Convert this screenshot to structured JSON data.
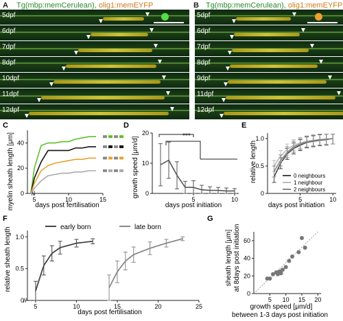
{
  "panels": {
    "A": {
      "letter": "A",
      "title_1": "Tg(mbp:memCerulean),",
      "title_2": "olig1:memEYFP",
      "rows": [
        "5dpf",
        "6dpf",
        "7dpf",
        "8dpf",
        "10dpf",
        "11dpf",
        "12dpf"
      ]
    },
    "B": {
      "letter": "B",
      "title_1": "Tg(mbp:memCerulean),",
      "title_2": "olig1:memEYFP",
      "rows": [
        "5dpf",
        "6dpf",
        "7dpf",
        "8dpf",
        "9dpf",
        "11dpf",
        "12dpf"
      ]
    },
    "C": {
      "letter": "C",
      "ylabel": "myelin sheath length [μm]",
      "xlabel": "days post fertilisation",
      "yticks": [
        "0",
        "20",
        "40"
      ],
      "xticks": [
        "5",
        "10",
        "15"
      ]
    },
    "D": {
      "letter": "D",
      "ylabel": "growth speed [μm/d]",
      "xlabel": "days post initiation",
      "yticks": [
        "0",
        "10",
        "20"
      ],
      "xticks": [
        "5",
        "10"
      ],
      "sig": "***"
    },
    "E": {
      "letter": "E",
      "ylabel": "relative length",
      "xlabel": "days post initiation",
      "yticks": [
        "0",
        "0.5",
        "1.0"
      ],
      "xticks": [
        "5",
        "10"
      ],
      "legend": [
        "0 neighbours",
        "1 neighbour",
        "2 neighbours"
      ]
    },
    "F": {
      "letter": "F",
      "ylabel": "relative sheath length",
      "xlabel": "days post fertilisation",
      "yticks": [
        "0",
        "0.5",
        "1.0"
      ],
      "xticks": [
        "5",
        "10",
        "15",
        "20",
        "25"
      ],
      "legend": [
        "early born",
        "late born"
      ]
    },
    "G": {
      "letter": "G",
      "ylabel_1": "sheath length [μm]",
      "ylabel_2": "at 8days post initiation",
      "xlabel_1": "growth speed [μm/d]",
      "xlabel_2": "between 1-3 days post initiation",
      "yticks": [
        "0",
        "20",
        "40",
        "60"
      ],
      "xticks": [
        "5",
        "10",
        "15",
        "20"
      ]
    }
  },
  "colors": {
    "green": "#5cc02a",
    "orange": "#e8a030",
    "black": "#111111",
    "grey": "#aaaaaa",
    "dark": "#444444",
    "mid": "#888888",
    "light": "#bbbbbb",
    "scatter": "#777777"
  },
  "chart_data": [
    {
      "panel": "C",
      "type": "line",
      "series": [
        {
          "color": "#5cc02a",
          "x": [
            4.5,
            5,
            6,
            7,
            8,
            9,
            10,
            11,
            12,
            13,
            14
          ],
          "y": [
            0,
            20,
            38,
            40,
            40,
            41,
            41,
            43,
            44,
            45,
            45
          ]
        },
        {
          "color": "#111111",
          "x": [
            4.5,
            5,
            6,
            7,
            8,
            9,
            10,
            11,
            12,
            13,
            14
          ],
          "y": [
            0,
            12,
            25,
            34,
            34,
            34,
            34,
            36,
            36,
            37,
            37
          ]
        },
        {
          "color": "#e8a030",
          "x": [
            4.5,
            5,
            6,
            7,
            8,
            9,
            10,
            11,
            12,
            13,
            14
          ],
          "y": [
            0,
            8,
            18,
            22,
            24,
            25,
            26,
            27,
            27,
            28,
            28
          ]
        },
        {
          "color": "#aaaaaa",
          "x": [
            4.5,
            5,
            6,
            7,
            8,
            9,
            10,
            11,
            12,
            13,
            14
          ],
          "y": [
            0,
            4,
            10,
            14,
            15,
            16,
            16,
            17,
            17,
            18,
            18
          ]
        }
      ],
      "xlim": [
        4,
        15
      ],
      "ylim": [
        0,
        50
      ]
    },
    {
      "panel": "D",
      "type": "line",
      "x": [
        1,
        2,
        3,
        4,
        5,
        6,
        7,
        8,
        9,
        10
      ],
      "y": [
        9.5,
        11,
        6,
        2,
        2,
        1.2,
        1,
        1,
        0.8,
        0.8
      ],
      "err": [
        7,
        6,
        4.5,
        2,
        2.2,
        1.5,
        1.2,
        1,
        1,
        0.8
      ],
      "xlim": [
        0,
        10.5
      ],
      "ylim": [
        0,
        20
      ]
    },
    {
      "panel": "E",
      "type": "line",
      "series": [
        {
          "name": "0 neighbours",
          "color": "#444444",
          "x": [
            1,
            2,
            3,
            4,
            5,
            6,
            7,
            8,
            9,
            10
          ],
          "y": [
            0.3,
            0.55,
            0.72,
            0.82,
            0.88,
            0.93,
            0.95,
            0.97,
            0.98,
            1.0
          ]
        },
        {
          "name": "1 neighbour",
          "color": "#bbbbbb",
          "x": [
            1,
            2,
            3,
            4,
            5,
            6,
            7,
            8,
            9,
            10
          ],
          "y": [
            0.5,
            0.68,
            0.8,
            0.88,
            0.92,
            0.95,
            0.97,
            0.98,
            0.99,
            1.0
          ]
        },
        {
          "name": "2 neighbours",
          "color": "#888888",
          "x": [
            1,
            2,
            3,
            4,
            5,
            6,
            7,
            8,
            9,
            10
          ],
          "y": [
            0.4,
            0.6,
            0.75,
            0.85,
            0.9,
            0.94,
            0.96,
            0.98,
            0.99,
            1.0
          ]
        }
      ],
      "xlim": [
        0,
        10.5
      ],
      "ylim": [
        0,
        1.1
      ]
    },
    {
      "panel": "F",
      "type": "line",
      "series": [
        {
          "name": "early born",
          "color": "#444444",
          "x": [
            5,
            6,
            7,
            8,
            10,
            12
          ],
          "y": [
            0.15,
            0.55,
            0.74,
            0.83,
            0.9,
            0.93
          ],
          "err": [
            0.15,
            0.15,
            0.12,
            0.1,
            0.06,
            0.04
          ]
        },
        {
          "name": "late born",
          "color": "#888888",
          "x": [
            14,
            15,
            16,
            17,
            19,
            21,
            23
          ],
          "y": [
            0.2,
            0.45,
            0.62,
            0.72,
            0.82,
            0.9,
            0.97
          ],
          "err": [
            0.2,
            0.17,
            0.14,
            0.12,
            0.1,
            0.06,
            0.03
          ]
        }
      ],
      "xlim": [
        4,
        25
      ],
      "ylim": [
        0,
        1.1
      ]
    },
    {
      "panel": "G",
      "type": "scatter",
      "x": [
        4.2,
        5,
        6,
        7,
        7.5,
        8,
        8.5,
        9,
        10,
        11,
        12,
        14,
        15,
        16
      ],
      "y": [
        17,
        17,
        22,
        24,
        22,
        25,
        23,
        27,
        30,
        37,
        42,
        47,
        63,
        52
      ],
      "xlim": [
        0,
        21
      ],
      "ylim": [
        0,
        70
      ]
    }
  ]
}
